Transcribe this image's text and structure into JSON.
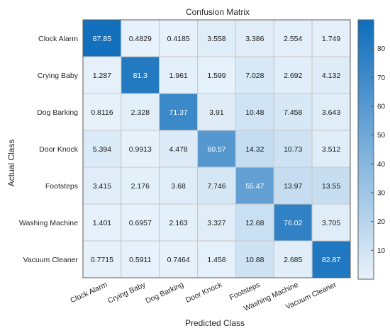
{
  "chart_data": {
    "type": "heatmap",
    "title": "Confusion Matrix",
    "xlabel": "Predicted Class",
    "ylabel": "Actual Class",
    "row_labels": [
      "Clock Alarm",
      "Crying Baby",
      "Dog Barking",
      "Door Knock",
      "Footsteps",
      "Washing Machine",
      "Vacuum Cleaner"
    ],
    "col_labels": [
      "Clock Alarm",
      "Crying Baby",
      "Dog Barking",
      "Door Knock",
      "Footsteps",
      "Washing Machine",
      "Vacuum Cleaner"
    ],
    "values": [
      [
        "87.85",
        "0.4829",
        "0.4185",
        "3.558",
        "3.386",
        "2.554",
        "1.749"
      ],
      [
        "1.287",
        "81.3",
        "1.961",
        "1.599",
        "7.028",
        "2.692",
        "4.132"
      ],
      [
        "0.8116",
        "2.328",
        "71.37",
        "3.91",
        "10.48",
        "7.458",
        "3.643"
      ],
      [
        "5.394",
        "0.9913",
        "4.478",
        "60.57",
        "14.32",
        "10.73",
        "3.512"
      ],
      [
        "3.415",
        "2.176",
        "3.68",
        "7.746",
        "55.47",
        "13.97",
        "13.55"
      ],
      [
        "1.401",
        "0.6957",
        "2.163",
        "3.327",
        "12.68",
        "76.02",
        "3.705"
      ],
      [
        "0.7715",
        "0.5911",
        "0.7464",
        "1.458",
        "10.88",
        "2.685",
        "82.87"
      ]
    ],
    "colorbar": {
      "ticks": [
        "10",
        "20",
        "30",
        "40",
        "50",
        "60",
        "70",
        "80"
      ],
      "range": [
        0,
        90
      ]
    },
    "colors": {
      "low": "#e8f2fb",
      "high": "#0e6dbb",
      "grid": "#c8c8c8"
    },
    "grid": true
  }
}
